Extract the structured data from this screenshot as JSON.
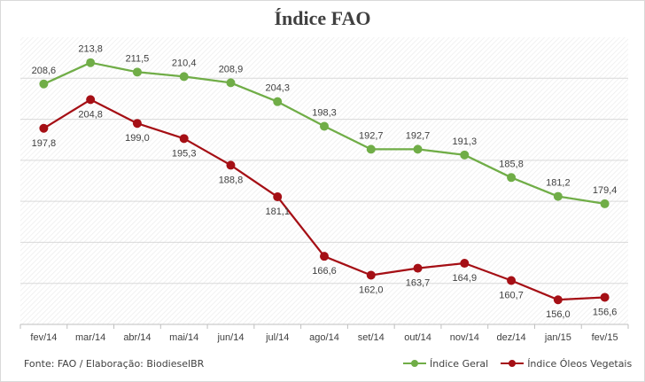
{
  "chart_data": {
    "type": "line",
    "title": "Índice FAO",
    "categories": [
      "fev/14",
      "mar/14",
      "abr/14",
      "mai/14",
      "jun/14",
      "jul/14",
      "ago/14",
      "set/14",
      "out/14",
      "nov/14",
      "dez/14",
      "jan/15",
      "fev/15"
    ],
    "series": [
      {
        "name": "Índice Geral",
        "color": "#70ad47",
        "values": [
          208.6,
          213.8,
          211.5,
          210.4,
          208.9,
          204.3,
          198.3,
          192.7,
          192.7,
          191.3,
          185.8,
          181.2,
          179.4
        ],
        "labels": [
          "208,6",
          "213,8",
          "211,5",
          "210,4",
          "208,9",
          "204,3",
          "198,3",
          "192,7",
          "192,7",
          "191,3",
          "185,8",
          "181,2",
          "179,4"
        ]
      },
      {
        "name": "Índice Óleos Vegetais",
        "color": "#a50f15",
        "values": [
          197.8,
          204.8,
          199.0,
          195.3,
          188.8,
          181.1,
          166.6,
          162.0,
          163.7,
          164.9,
          160.7,
          156.0,
          156.6
        ],
        "labels": [
          "197,8",
          "204,8",
          "199,0",
          "195,3",
          "188,8",
          "181,1",
          "166,6",
          "162,0",
          "163,7",
          "164,9",
          "160,7",
          "156,0",
          "156,6"
        ]
      }
    ],
    "ylim": [
      150,
      220
    ],
    "grid": true,
    "legend_position": "bottom-right"
  },
  "footer": {
    "source": "Fonte: FAO / Elaboração: BiodieselBR"
  }
}
